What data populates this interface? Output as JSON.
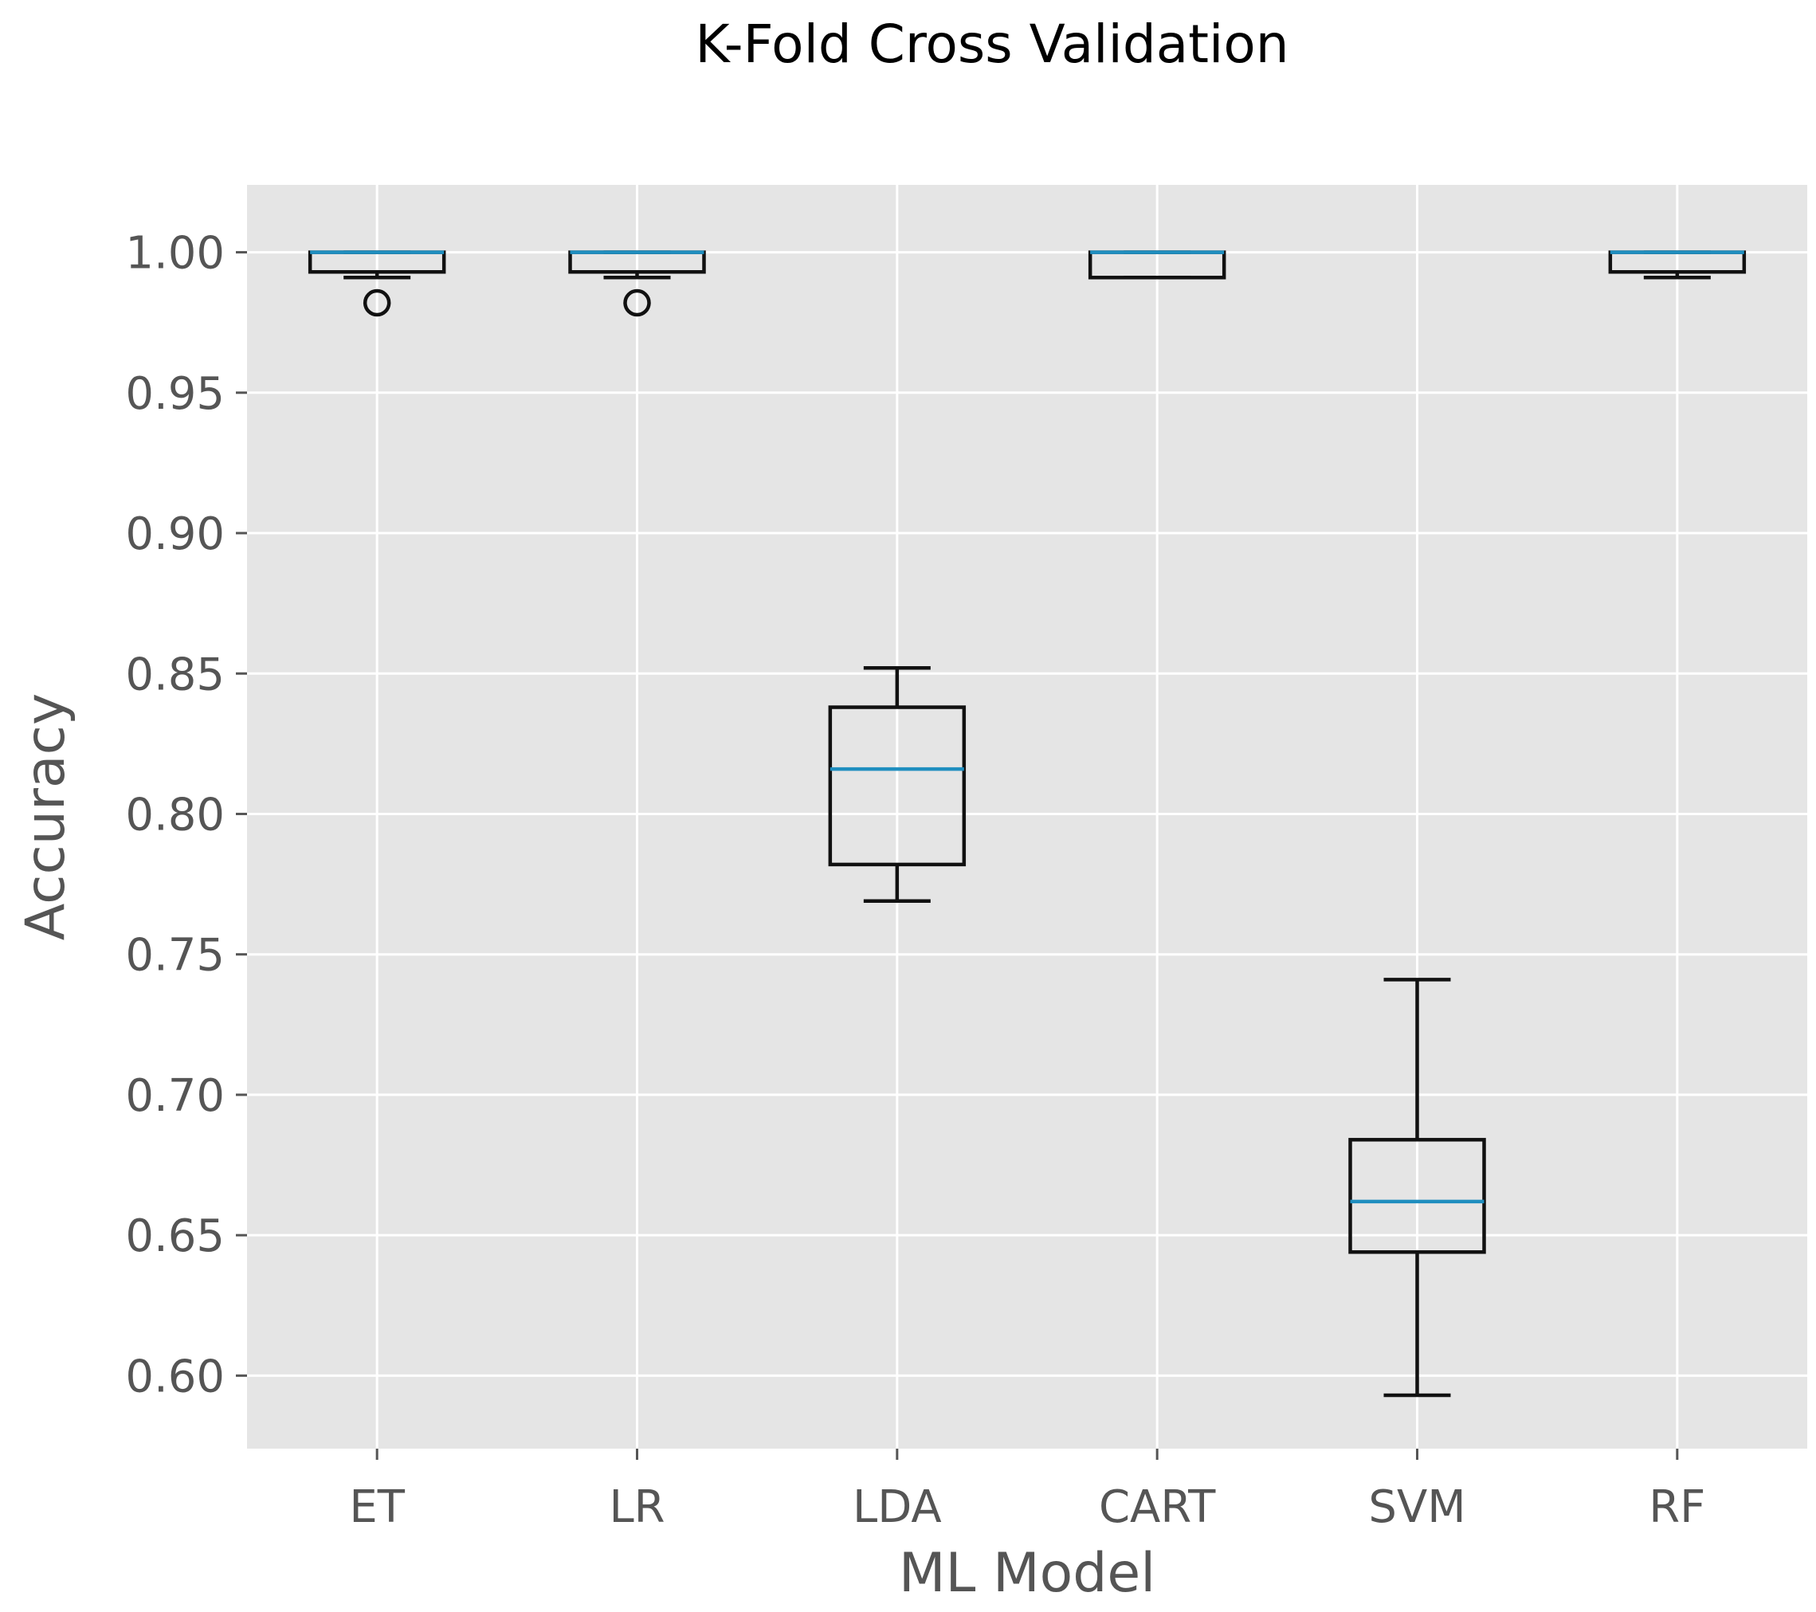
{
  "chart_data": {
    "type": "boxplot",
    "title": "K-Fold Cross Validation",
    "xlabel": "ML Model",
    "ylabel": "Accuracy",
    "ylim": [
      0.574,
      1.024
    ],
    "yticks": [
      0.6,
      0.65,
      0.7,
      0.75,
      0.8,
      0.85,
      0.9,
      0.95,
      1.0
    ],
    "ytick_labels": [
      "0.60",
      "0.65",
      "0.70",
      "0.75",
      "0.80",
      "0.85",
      "0.90",
      "0.95",
      "1.00"
    ],
    "grid": true,
    "categories": [
      "ET",
      "LR",
      "LDA",
      "CART",
      "SVM",
      "RF"
    ],
    "boxes": [
      {
        "name": "ET",
        "whisker_low": 0.991,
        "q1": 0.993,
        "median": 1.0,
        "q3": 1.0,
        "whisker_high": 1.0,
        "outliers": [
          0.982
        ]
      },
      {
        "name": "LR",
        "whisker_low": 0.991,
        "q1": 0.993,
        "median": 1.0,
        "q3": 1.0,
        "whisker_high": 1.0,
        "outliers": [
          0.982
        ]
      },
      {
        "name": "LDA",
        "whisker_low": 0.769,
        "q1": 0.782,
        "median": 0.816,
        "q3": 0.838,
        "whisker_high": 0.852,
        "outliers": []
      },
      {
        "name": "CART",
        "whisker_low": 0.991,
        "q1": 0.991,
        "median": 1.0,
        "q3": 1.0,
        "whisker_high": 1.0,
        "outliers": []
      },
      {
        "name": "SVM",
        "whisker_low": 0.593,
        "q1": 0.644,
        "median": 0.662,
        "q3": 0.684,
        "whisker_high": 0.741,
        "outliers": []
      },
      {
        "name": "RF",
        "whisker_low": 0.991,
        "q1": 0.993,
        "median": 1.0,
        "q3": 1.0,
        "whisker_high": 1.0,
        "outliers": []
      }
    ],
    "colors": {
      "background": "#E5E5E5",
      "grid": "#FFFFFF",
      "box": "#111111",
      "median": "#1F8EBF",
      "tick": "#555555"
    }
  }
}
